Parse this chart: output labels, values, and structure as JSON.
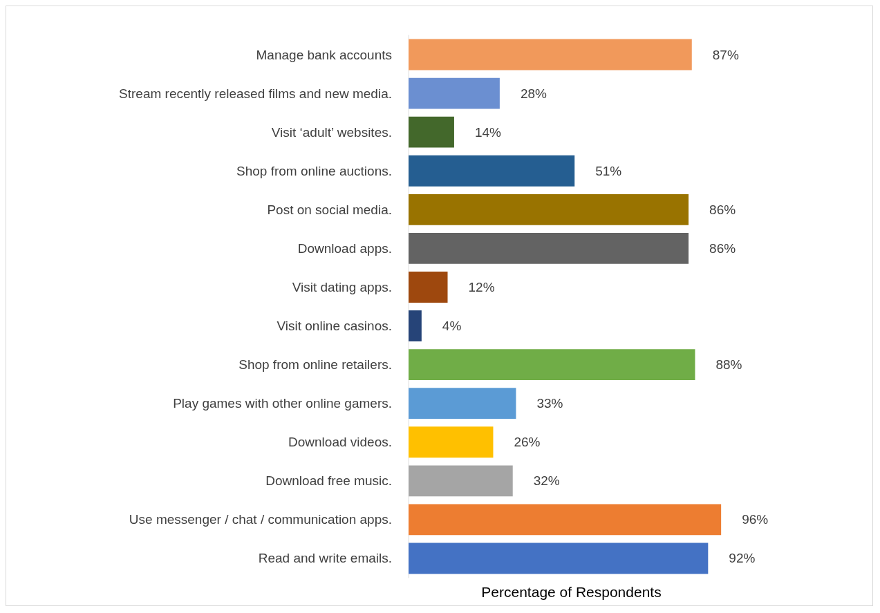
{
  "chart_data": {
    "type": "bar",
    "orientation": "horizontal",
    "xlabel": "Percentage of Respondents",
    "grid": false,
    "value_labels": [
      "87%",
      "28%",
      "14%",
      "51%",
      "86%",
      "86%",
      "12%",
      "4%",
      "88%",
      "33%",
      "26%",
      "32%",
      "96%",
      "92%"
    ],
    "categories": [
      "Manage bank accounts",
      "Stream recently released films and new media.",
      "Visit ‘adult’ websites.",
      "Shop from online auctions.",
      "Post on social media.",
      "Download apps.",
      "Visit dating apps.",
      "Visit online casinos.",
      "Shop from online retailers.",
      "Play games with other online gamers.",
      "Download videos.",
      "Download free music.",
      "Use messenger / chat / communication apps.",
      "Read and write emails."
    ],
    "values": [
      87,
      28,
      14,
      51,
      86,
      86,
      12,
      4,
      88,
      33,
      26,
      32,
      96,
      92
    ],
    "colors": [
      "#f1995b",
      "#6b8fd1",
      "#43682b",
      "#255e91",
      "#997300",
      "#636363",
      "#9e480e",
      "#264478",
      "#70ad47",
      "#5b9bd5",
      "#ffc000",
      "#a5a5a5",
      "#ed7d31",
      "#4472c4"
    ]
  }
}
